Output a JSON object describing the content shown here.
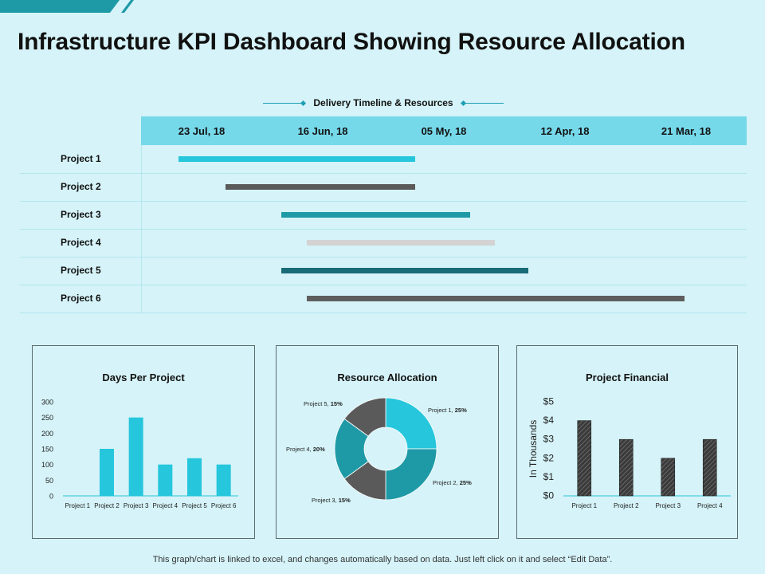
{
  "title": "Infrastructure KPI Dashboard Showing Resource Allocation",
  "colors": {
    "accent": "#26c6dc",
    "dark_teal": "#1a6b78",
    "mid_teal": "#1e9aa7",
    "dark_gray": "#555555",
    "light_gray": "#d3d3d3",
    "header_blue": "#76d9ea"
  },
  "gantt": {
    "legend_label": "Delivery Timeline & Resources",
    "dates": [
      "23 Jul, 18",
      "16 Jun, 18",
      "05 My, 18",
      "12 Apr, 18",
      "21 Mar, 18"
    ],
    "rows": [
      {
        "label": "Project 1",
        "start": 0.31,
        "end": 2.26,
        "color": "#26c6dc"
      },
      {
        "label": "Project 2",
        "start": 0.7,
        "end": 2.26,
        "color": "#5a5a5a"
      },
      {
        "label": "Project 3",
        "start": 1.16,
        "end": 2.72,
        "color": "#1e9aa7"
      },
      {
        "label": "Project 4",
        "start": 1.37,
        "end": 2.92,
        "color": "#d3d3d3"
      },
      {
        "label": "Project 5",
        "start": 1.16,
        "end": 3.2,
        "color": "#1a6b78"
      },
      {
        "label": "Project 6",
        "start": 1.37,
        "end": 4.49,
        "color": "#5e5e5e"
      }
    ]
  },
  "chart_data": [
    {
      "type": "bar",
      "title": "Days Per Project",
      "categories": [
        "Project 1",
        "Project 2",
        "Project 3",
        "Project 4",
        "Project 5",
        "Project 6"
      ],
      "values": [
        0,
        150,
        250,
        100,
        120,
        100
      ],
      "ylim": [
        0,
        300
      ],
      "yticks": [
        "0",
        "50",
        "100",
        "150",
        "200",
        "250",
        "300"
      ],
      "color": "#26c6dc",
      "grid": false
    },
    {
      "type": "pie",
      "title": "Resource Allocation",
      "slices": [
        {
          "label": "Project 1",
          "value": 25,
          "value_label": "25%",
          "color": "#26c6dc"
        },
        {
          "label": "Project 2",
          "value": 25,
          "value_label": "25%",
          "color": "#1e9aa7"
        },
        {
          "label": "Project 3",
          "value": 15,
          "value_label": "15%",
          "color": "#5a5a5a"
        },
        {
          "label": "Project 4",
          "value": 20,
          "value_label": "20%",
          "color": "#1e9aa7"
        },
        {
          "label": "Project 5",
          "value": 15,
          "value_label": "15%",
          "color": "#5a5a5a"
        }
      ]
    },
    {
      "type": "bar",
      "title": "Project Financial",
      "ylabel": "In Thousands",
      "categories": [
        "Project 1",
        "Project 2",
        "Project 3",
        "Project 4"
      ],
      "values": [
        4,
        3,
        2,
        3
      ],
      "ylim": [
        0,
        5
      ],
      "yticks": [
        "$0",
        "$1",
        "$2",
        "$3",
        "$4",
        "$5"
      ],
      "color": "#4a4a4a",
      "grid": false
    }
  ],
  "footnote": "This graph/chart is linked to excel, and changes automatically based on data. Just left click on it and select “Edit Data”."
}
